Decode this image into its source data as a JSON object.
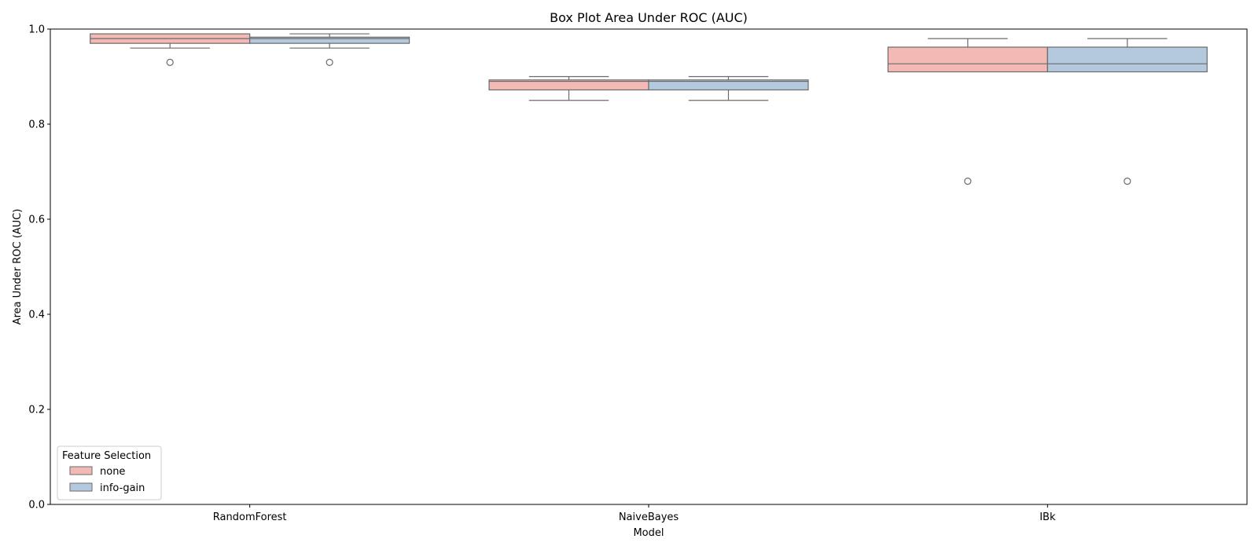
{
  "chart_data": {
    "type": "box",
    "title": "Box Plot Area Under ROC (AUC)",
    "xlabel": "Model",
    "ylabel": "Area Under ROC (AUC)",
    "ylim": [
      0.0,
      1.0
    ],
    "yticks": [
      "0.0",
      "0.2",
      "0.4",
      "0.6",
      "0.8",
      "1.0"
    ],
    "categories": [
      "RandomForest",
      "NaiveBayes",
      "IBk"
    ],
    "legend": {
      "title": "Feature Selection",
      "placement": "lower-left"
    },
    "series": [
      {
        "name": "none",
        "color": "#f2b9b5",
        "boxes": [
          {
            "whislo": 0.96,
            "q1": 0.97,
            "med": 0.98,
            "q3": 0.99,
            "whishi": 0.99,
            "fliers": [
              0.93
            ]
          },
          {
            "whislo": 0.85,
            "q1": 0.872,
            "med": 0.89,
            "q3": 0.893,
            "whishi": 0.9,
            "fliers": []
          },
          {
            "whislo": 0.91,
            "q1": 0.91,
            "med": 0.927,
            "q3": 0.962,
            "whishi": 0.98,
            "fliers": [
              0.68
            ]
          }
        ]
      },
      {
        "name": "info-gain",
        "color": "#b4c9de",
        "boxes": [
          {
            "whislo": 0.96,
            "q1": 0.97,
            "med": 0.98,
            "q3": 0.983,
            "whishi": 0.99,
            "fliers": [
              0.93
            ]
          },
          {
            "whislo": 0.85,
            "q1": 0.872,
            "med": 0.89,
            "q3": 0.893,
            "whishi": 0.9,
            "fliers": []
          },
          {
            "whislo": 0.91,
            "q1": 0.91,
            "med": 0.927,
            "q3": 0.962,
            "whishi": 0.98,
            "fliers": [
              0.68
            ]
          }
        ]
      }
    ],
    "line_color": "#6b6b6b",
    "grid": false
  }
}
